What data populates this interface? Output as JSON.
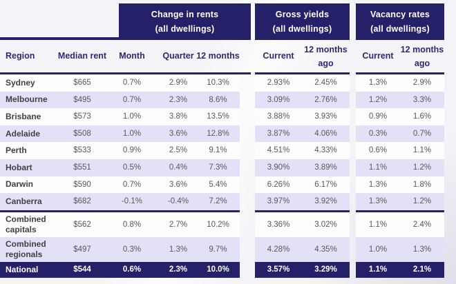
{
  "colors": {
    "navy": "#242168",
    "row_alt_lavender": "#e2e1f7",
    "row_base_white": "#fdfdfe",
    "page_background": "#f4f3f7",
    "header_text_navy": "#2b2a72",
    "value_text_gray": "#58585c"
  },
  "table": {
    "groups": [
      {
        "title": "Change in rents",
        "subtitle": "(all dwellings)"
      },
      {
        "title": "Gross yields",
        "subtitle": "(all dwellings)"
      },
      {
        "title": "Vacancy rates",
        "subtitle": "(all dwellings)"
      }
    ],
    "columns": {
      "region": "Region",
      "median_rent": "Median rent",
      "month": "Month",
      "quarter": "Quarter",
      "twelve_months": "12 months",
      "gy_current": "Current",
      "gy_12mo": "12 months ago",
      "vac_current": "Current",
      "vac_12mo": "12 months ago"
    },
    "rows": [
      {
        "kind": "capital",
        "region": "Sydney",
        "median_rent": "$665",
        "month": "0.7%",
        "quarter": "2.9%",
        "twelve_months": "10.3%",
        "gy_current": "2.93%",
        "gy_12mo": "2.45%",
        "vac_current": "1.3%",
        "vac_12mo": "2.9%"
      },
      {
        "kind": "capital",
        "region": "Melbourne",
        "median_rent": "$495",
        "month": "0.7%",
        "quarter": "2.3%",
        "twelve_months": "8.6%",
        "gy_current": "3.09%",
        "gy_12mo": "2.76%",
        "vac_current": "1.2%",
        "vac_12mo": "3.3%"
      },
      {
        "kind": "capital",
        "region": "Brisbane",
        "median_rent": "$573",
        "month": "1.0%",
        "quarter": "3.8%",
        "twelve_months": "13.5%",
        "gy_current": "3.88%",
        "gy_12mo": "3.93%",
        "vac_current": "0.9%",
        "vac_12mo": "1.6%"
      },
      {
        "kind": "capital",
        "region": "Adelaide",
        "median_rent": "$508",
        "month": "1.0%",
        "quarter": "3.6%",
        "twelve_months": "12.8%",
        "gy_current": "3.87%",
        "gy_12mo": "4.06%",
        "vac_current": "0.3%",
        "vac_12mo": "0.7%"
      },
      {
        "kind": "capital",
        "region": "Perth",
        "median_rent": "$533",
        "month": "0.9%",
        "quarter": "2.5%",
        "twelve_months": "9.1%",
        "gy_current": "4.51%",
        "gy_12mo": "4.33%",
        "vac_current": "0.6%",
        "vac_12mo": "1.1%"
      },
      {
        "kind": "capital",
        "region": "Hobart",
        "median_rent": "$551",
        "month": "0.5%",
        "quarter": "0.4%",
        "twelve_months": "7.3%",
        "gy_current": "3.90%",
        "gy_12mo": "3.89%",
        "vac_current": "1.1%",
        "vac_12mo": "1.2%"
      },
      {
        "kind": "capital",
        "region": "Darwin",
        "median_rent": "$590",
        "month": "0.7%",
        "quarter": "3.6%",
        "twelve_months": "5.4%",
        "gy_current": "6.26%",
        "gy_12mo": "6.17%",
        "vac_current": "1.3%",
        "vac_12mo": "1.8%"
      },
      {
        "kind": "capital",
        "region": "Canberra",
        "median_rent": "$682",
        "month": "-0.1%",
        "quarter": "-0.4%",
        "twelve_months": "7.2%",
        "gy_current": "3.97%",
        "gy_12mo": "3.92%",
        "vac_current": "1.3%",
        "vac_12mo": "1.2%"
      },
      {
        "kind": "combined",
        "region": "Combined capitals",
        "median_rent": "$562",
        "month": "0.8%",
        "quarter": "2.7%",
        "twelve_months": "10.2%",
        "gy_current": "3.36%",
        "gy_12mo": "3.02%",
        "vac_current": "1.1%",
        "vac_12mo": "2.4%"
      },
      {
        "kind": "combined",
        "region": "Combined regionals",
        "median_rent": "$497",
        "month": "0.3%",
        "quarter": "1.3%",
        "twelve_months": "9.7%",
        "gy_current": "4.28%",
        "gy_12mo": "4.35%",
        "vac_current": "1.0%",
        "vac_12mo": "1.3%"
      },
      {
        "kind": "national",
        "region": "National",
        "median_rent": "$544",
        "month": "0.6%",
        "quarter": "2.3%",
        "twelve_months": "10.0%",
        "gy_current": "3.57%",
        "gy_12mo": "3.29%",
        "vac_current": "1.1%",
        "vac_12mo": "2.1%"
      }
    ]
  }
}
